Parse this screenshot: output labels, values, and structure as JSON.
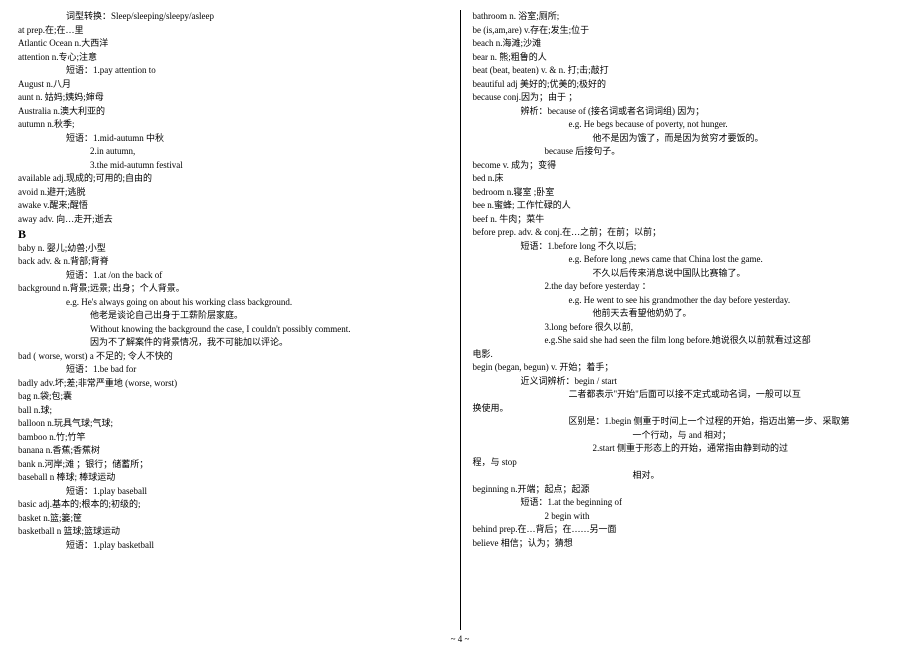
{
  "footer": "~ 4 ~",
  "left": [
    {
      "cls": "indent1",
      "txt": "词型转换：Sleep/sleeping/sleepy/asleep"
    },
    {
      "cls": "",
      "txt": "at    prep.在;在…里"
    },
    {
      "cls": "",
      "txt": "Atlantic Ocean    n.大西洋"
    },
    {
      "cls": "",
      "txt": "attention   n.专心;注意"
    },
    {
      "cls": "indent1",
      "txt": "短语：1.pay attention to"
    },
    {
      "cls": "",
      "txt": "August    n.八月"
    },
    {
      "cls": "",
      "txt": "aunt    n.  姑妈;姨妈;婶母"
    },
    {
      "cls": "",
      "txt": "Australia    n.澳大利亚的"
    },
    {
      "cls": "",
      "txt": "autumn       n.秋季;"
    },
    {
      "cls": "indent1",
      "txt": "短语：1.mid-autumn 中秋"
    },
    {
      "cls": "indent2",
      "txt": "2.in autumn,"
    },
    {
      "cls": "indent2",
      "txt": "3.the mid-autumn festival"
    },
    {
      "cls": "",
      "txt": "available    adj.现成的;可用的;自由的"
    },
    {
      "cls": "",
      "txt": "avoid   n.避开;逃脱"
    },
    {
      "cls": "",
      "txt": "awake   v.醒来;醒悟"
    },
    {
      "cls": "",
      "txt": "away     adv.  向…走开;逝去"
    },
    {
      "cls": "section-head",
      "txt": "B"
    },
    {
      "cls": "",
      "txt": "baby     n.  婴儿;幼兽;小型"
    },
    {
      "cls": "",
      "txt": "back    adv. & n.背部;背脊"
    },
    {
      "cls": "indent1",
      "txt": "短语：1.at /on the back of"
    },
    {
      "cls": "",
      "txt": "background    n.背景;远景;  出身；个人背景。"
    },
    {
      "cls": "indent1",
      "txt": "e.g. He's always going on about his working class background."
    },
    {
      "cls": "indent2",
      "txt": "他老是谈论自己出身于工薪阶层家庭。"
    },
    {
      "cls": "indent2 just",
      "txt": "Without  knowing  the  background  the  case,  I  couldn't  possibly comment."
    },
    {
      "cls": "indent2",
      "txt": "因为不了解案件的背景情况，我不可能加以评论。"
    },
    {
      "cls": "",
      "txt": "bad ( worse,   worst)     a  不足的; 令人不快的"
    },
    {
      "cls": "indent1",
      "txt": "短语：1.be bad for"
    },
    {
      "cls": "",
      "txt": "badly    adv.坏;差;非常严重地  (worse, worst)"
    },
    {
      "cls": "",
      "txt": "bag    n.袋;包;囊"
    },
    {
      "cls": "",
      "txt": "ball    n.球;"
    },
    {
      "cls": "",
      "txt": "balloon    n.玩具气球;气球;"
    },
    {
      "cls": "",
      "txt": "bamboo   n.竹;竹竿"
    },
    {
      "cls": "",
      "txt": "banana      n.香蕉;香蕉树"
    },
    {
      "cls": "",
      "txt": "bank   n.河岸;滩 ；银行；储蓄所；"
    },
    {
      "cls": "",
      "txt": "baseball    n 棒球;  棒球运动"
    },
    {
      "cls": "indent1",
      "txt": "短语：1.play baseball"
    },
    {
      "cls": "",
      "txt": "basic    adj.基本的;根本的;初级的;"
    },
    {
      "cls": "",
      "txt": "basket      n.篮;篓;筐"
    },
    {
      "cls": "",
      "txt": "basketball    n 篮球;篮球运动"
    },
    {
      "cls": "indent1",
      "txt": "短语：1.play basketball"
    }
  ],
  "right": [
    {
      "cls": "",
      "txt": "bathroom    n.  浴室;厕所;"
    },
    {
      "cls": "",
      "txt": "be (is,am,are)  v.存在;发生;位于"
    },
    {
      "cls": "",
      "txt": "beach    n.海滩;沙滩"
    },
    {
      "cls": "",
      "txt": "bear     n.   熊;粗鲁的人"
    },
    {
      "cls": "",
      "txt": "beat     (beat, beaten)    v.    &    n.      打;击;敲打"
    },
    {
      "cls": "",
      "txt": "beautiful     adj 美好的;优美的;极好的"
    },
    {
      "cls": "",
      "txt": "because    conj.因为；由于 ；"
    },
    {
      "cls": "indent1",
      "txt": "辨析：because of (接名词或者名词词组)  因为；"
    },
    {
      "cls": "indent3",
      "txt": "e.g. He begs because of poverty, not hunger."
    },
    {
      "cls": "indent4",
      "txt": "他不是因为饿了，而是因为贫穷才要饭的。"
    },
    {
      "cls": "indent2",
      "txt": "because   后接句子。"
    },
    {
      "cls": "",
      "txt": "become      v.  成为；变得"
    },
    {
      "cls": "",
      "txt": "bed   n.床"
    },
    {
      "cls": "",
      "txt": "bedroom    n.寝室 ;卧室"
    },
    {
      "cls": "",
      "txt": "bee   n.蜜蜂;  工作忙碌的人"
    },
    {
      "cls": "",
      "txt": "beef    n.  牛肉；菜牛"
    },
    {
      "cls": "",
      "txt": "before      prep. adv. & conj.在…之前；在前；以前；"
    },
    {
      "cls": "indent1",
      "txt": "短语：1.before long  不久以后;"
    },
    {
      "cls": "indent3",
      "txt": "e.g. Before long ,news came that China lost the game."
    },
    {
      "cls": "indent4",
      "txt": "不久以后传来消息说中国队比赛输了。"
    },
    {
      "cls": "indent2",
      "txt": "2.the day before yesterday ："
    },
    {
      "cls": "indent3",
      "txt": "e.g. He went to see his grandmother the day before yesterday."
    },
    {
      "cls": "indent4",
      "txt": "他前天去看望他奶奶了。"
    },
    {
      "cls": "indent2",
      "txt": "3.long before  很久以前,"
    },
    {
      "cls": "indent2",
      "txt": "e.g.She said she had seen the film long before.她说很久以前就看过这部"
    },
    {
      "cls": "",
      "txt": "电影."
    },
    {
      "cls": "",
      "txt": "begin (began, begun)     v.   开始；着手；"
    },
    {
      "cls": "indent1",
      "txt": "近义词辨析：begin / start"
    },
    {
      "cls": "indent3",
      "txt": "二者都表示\"开始\"后面可以接不定式或动名词，一般可以互"
    },
    {
      "cls": "",
      "txt": "换使用。"
    },
    {
      "cls": "indent3",
      "txt": "区别是：1.begin 侧重于时间上一个过程的开始，指迈出第一步、采取第"
    },
    {
      "cls": "indent5",
      "txt": "一个行动，与 and 相对；"
    },
    {
      "cls": "indent4",
      "txt": "2.start 侧重于形态上的开始，通常指由静到动的过"
    },
    {
      "cls": "",
      "txt": "程，与 stop"
    },
    {
      "cls": "indent5",
      "txt": "相对。"
    },
    {
      "cls": "",
      "txt": "beginning    n.开端；起点；起源"
    },
    {
      "cls": "indent1",
      "txt": "短语：1.at the beginning of"
    },
    {
      "cls": "indent2",
      "txt": "2 begin with"
    },
    {
      "cls": "",
      "txt": "behind    prep.在…背后；在……另一面"
    },
    {
      "cls": "",
      "txt": "believe    相信；认为；猜想"
    }
  ]
}
